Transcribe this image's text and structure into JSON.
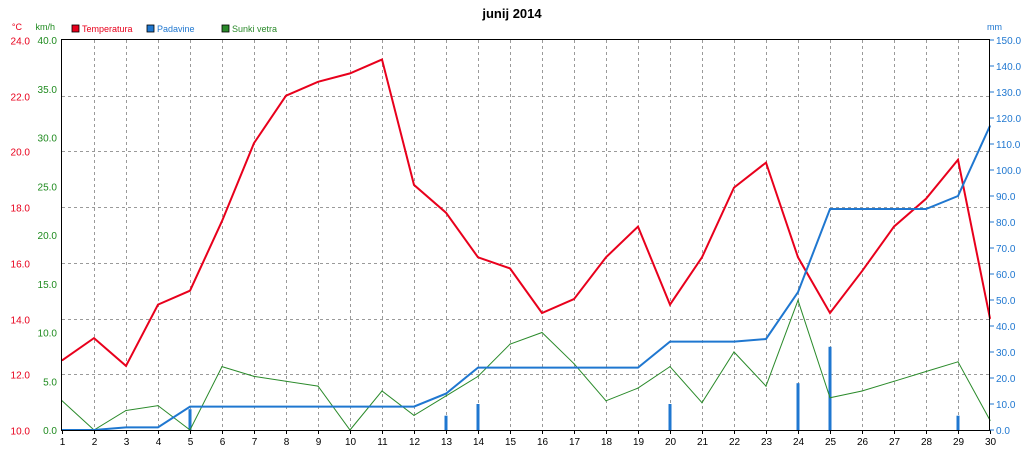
{
  "chart_data": {
    "type": "line",
    "title": "junij 2014",
    "x": [
      1,
      2,
      3,
      4,
      5,
      6,
      7,
      8,
      9,
      10,
      11,
      12,
      13,
      14,
      15,
      16,
      17,
      18,
      19,
      20,
      21,
      22,
      23,
      24,
      25,
      26,
      27,
      28,
      29,
      30
    ],
    "x_ticks": [
      "1",
      "2",
      "3",
      "4",
      "5",
      "6",
      "7",
      "8",
      "9",
      "10",
      "11",
      "12",
      "13",
      "14",
      "15",
      "16",
      "17",
      "18",
      "19",
      "20",
      "21",
      "22",
      "23",
      "24",
      "25",
      "26",
      "27",
      "28",
      "29",
      "30"
    ],
    "axes": {
      "temp": {
        "unit": "°C",
        "min": 10,
        "max": 24,
        "ticks": [
          "10.0",
          "12.0",
          "14.0",
          "16.0",
          "18.0",
          "20.0",
          "22.0",
          "24.0"
        ],
        "color": "#e8001c"
      },
      "wind": {
        "unit": "km/h",
        "min": 0,
        "max": 40,
        "ticks": [
          "0.0",
          "5.0",
          "10.0",
          "15.0",
          "20.0",
          "25.0",
          "30.0",
          "35.0",
          "40.0"
        ],
        "color": "#1e8a1e"
      },
      "rain": {
        "unit": "mm",
        "min": 0,
        "max": 150,
        "ticks": [
          "0.0",
          "10.0",
          "20.0",
          "30.0",
          "40.0",
          "50.0",
          "60.0",
          "70.0",
          "80.0",
          "90.0",
          "100.0",
          "110.0",
          "120.0",
          "130.0",
          "140.0",
          "150.0"
        ],
        "color": "#1f77d0"
      }
    },
    "grid": true,
    "legend": [
      {
        "name": "Temperatura",
        "color": "#e8001c"
      },
      {
        "name": "Padavine",
        "color": "#1f77d0"
      },
      {
        "name": "Sunki vetra",
        "color": "#2a8a2a"
      }
    ],
    "series": [
      {
        "name": "Temperatura",
        "axis": "temp",
        "color": "#e8001c",
        "values": [
          12.5,
          13.3,
          12.3,
          14.5,
          15.0,
          17.5,
          20.3,
          22.0,
          22.5,
          22.8,
          23.3,
          18.8,
          17.8,
          16.2,
          15.8,
          14.2,
          14.7,
          16.2,
          17.3,
          14.5,
          16.2,
          18.7,
          19.6,
          16.2,
          14.2,
          15.7,
          17.3,
          18.3,
          19.7,
          14.0
        ]
      },
      {
        "name": "Sunki vetra",
        "axis": "wind",
        "color": "#2a8a2a",
        "values": [
          3.0,
          0.0,
          2.0,
          2.5,
          0.0,
          6.5,
          5.5,
          5.0,
          4.5,
          0.0,
          4.0,
          1.5,
          3.5,
          5.5,
          8.8,
          10.0,
          6.8,
          3.0,
          4.3,
          6.5,
          2.8,
          8.0,
          4.5,
          13.3,
          3.3,
          4.0,
          5.0,
          6.0,
          7.0,
          1.0
        ]
      },
      {
        "name": "Padavine",
        "axis": "rain",
        "color": "#1f77d0",
        "values": [
          0.0,
          0.0,
          1.0,
          1.0,
          9.0,
          9.0,
          9.0,
          9.0,
          9.0,
          9.0,
          9.0,
          9.0,
          14.0,
          24.0,
          24.0,
          24.0,
          24.0,
          24.0,
          24.0,
          34.0,
          34.0,
          34.0,
          35.0,
          53.0,
          85.0,
          85.0,
          85.0,
          85.0,
          90.0,
          117.0
        ]
      }
    ],
    "daily_precipitation": {
      "name": "Padavine",
      "axis": "rain",
      "color": "#1f77d0",
      "days": [
        5,
        13,
        14,
        20,
        24,
        25,
        29
      ],
      "values": [
        8.0,
        5.5,
        10.0,
        10.0,
        18.0,
        32.0,
        5.5
      ]
    }
  }
}
